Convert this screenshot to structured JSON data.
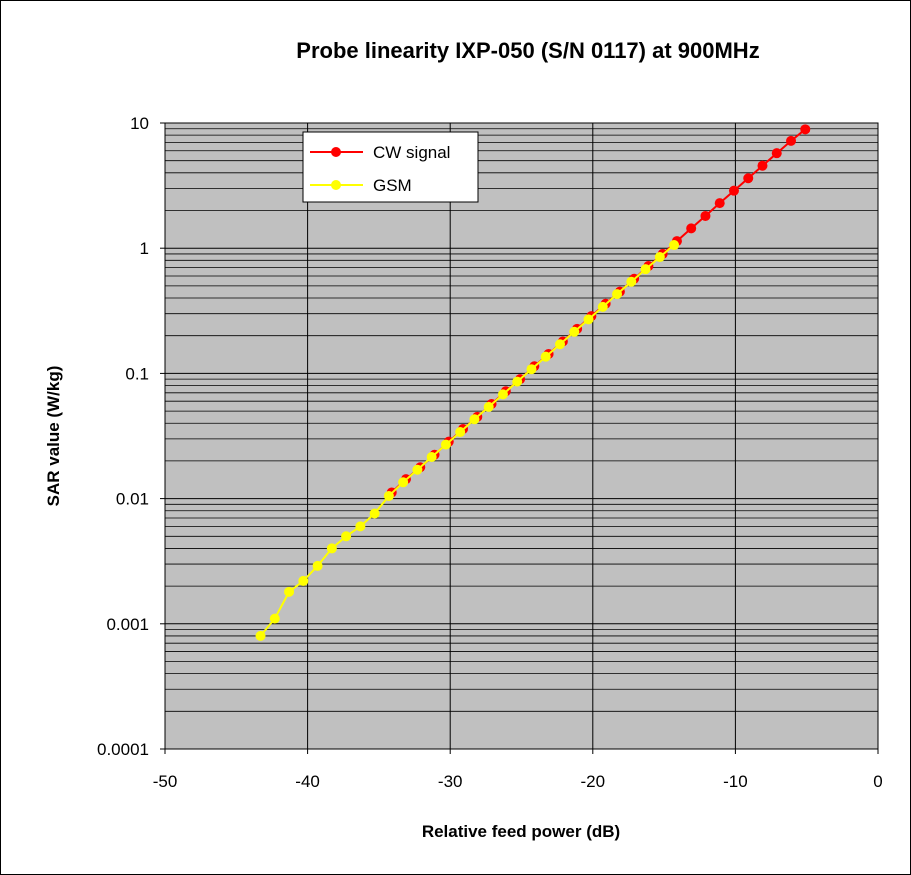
{
  "chart_data": {
    "type": "line",
    "title": "Probe linearity IXP-050 (S/N 0117) at 900MHz",
    "xlabel": "Relative feed power (dB)",
    "ylabel": "SAR value (W/kg)",
    "xlim": [
      -50,
      0
    ],
    "ylim": [
      0.0001,
      10
    ],
    "yscale": "log",
    "grid": true,
    "plot_background": "#c0c0c0",
    "legend_position": "top-left",
    "x_ticks": [
      -50,
      -40,
      -30,
      -20,
      -10,
      0
    ],
    "x_tick_labels": [
      "-50",
      "-40",
      "-30",
      "-20",
      "-10",
      "0"
    ],
    "y_ticks": [
      0.0001,
      0.001,
      0.01,
      0.1,
      1,
      10
    ],
    "y_tick_labels": [
      "0.0001",
      "0.001",
      "0.01",
      "0.1",
      "1",
      "10"
    ],
    "series": [
      {
        "name": "CW signal",
        "color": "#ff0000",
        "x": [
          -34.1,
          -33.1,
          -32.1,
          -31.1,
          -30.1,
          -29.1,
          -28.1,
          -27.1,
          -26.1,
          -25.1,
          -24.1,
          -23.1,
          -22.1,
          -21.1,
          -20.1,
          -19.1,
          -18.1,
          -17.1,
          -16.1,
          -15.1,
          -14.1,
          -13.1,
          -12.1,
          -11.1,
          -10.1,
          -9.1,
          -8.1,
          -7.1,
          -6.1,
          -5.1
        ],
        "y": [
          0.0112,
          0.0143,
          0.0178,
          0.0224,
          0.0285,
          0.036,
          0.045,
          0.057,
          0.072,
          0.09,
          0.114,
          0.143,
          0.18,
          0.227,
          0.287,
          0.36,
          0.45,
          0.57,
          0.72,
          0.9,
          1.14,
          1.44,
          1.81,
          2.29,
          2.88,
          3.62,
          4.56,
          5.74,
          7.2,
          8.9
        ]
      },
      {
        "name": "GSM",
        "color": "#ffff00",
        "x": [
          -43.3,
          -42.3,
          -41.3,
          -40.3,
          -39.3,
          -38.3,
          -37.3,
          -36.3,
          -35.3,
          -34.3,
          -33.3,
          -32.3,
          -31.3,
          -30.3,
          -29.3,
          -28.3,
          -27.3,
          -26.3,
          -25.3,
          -24.3,
          -23.3,
          -22.3,
          -21.3,
          -20.3,
          -19.3,
          -18.3,
          -17.3,
          -16.3,
          -15.3,
          -14.3
        ],
        "y": [
          0.0008,
          0.0011,
          0.0018,
          0.0022,
          0.0029,
          0.004,
          0.005,
          0.006,
          0.0076,
          0.0105,
          0.0135,
          0.017,
          0.0215,
          0.027,
          0.034,
          0.043,
          0.054,
          0.068,
          0.086,
          0.108,
          0.136,
          0.171,
          0.215,
          0.27,
          0.34,
          0.43,
          0.54,
          0.68,
          0.85,
          1.06
        ]
      }
    ]
  }
}
